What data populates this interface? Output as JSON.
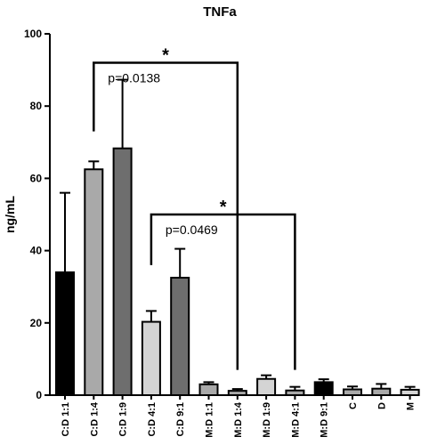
{
  "chart_data": {
    "type": "bar",
    "title": "TNFa",
    "xlabel": "",
    "ylabel": "ng/mL",
    "ylim": [
      0,
      100
    ],
    "yticks": [
      "0",
      "20",
      "40",
      "60",
      "80",
      "100"
    ],
    "categories": [
      "C:D 1:1",
      "C:D 1:4",
      "C:D 1:9",
      "C:D 4:1",
      "C:D 9:1",
      "M:D 1:1",
      "M:D 1:4",
      "M:D 1:9",
      "M:D 4:1",
      "M:D 9:1",
      "C",
      "D",
      "M"
    ],
    "values": [
      34,
      62.5,
      68.3,
      20.3,
      32.5,
      3,
      1.2,
      4.5,
      1.3,
      3.6,
      1.6,
      1.8,
      1.5
    ],
    "errors": [
      22,
      2.2,
      19,
      3,
      8,
      0.6,
      0.5,
      1,
      1,
      0.8,
      0.8,
      1.3,
      0.8
    ],
    "colors": [
      "#000000",
      "#a9a9a9",
      "#6e6e6e",
      "#d4d4d4",
      "#6e6e6e",
      "#a9a9a9",
      "#a9a9a9",
      "#d4d4d4",
      "#a9a9a9",
      "#000000",
      "#a9a9a9",
      "#a9a9a9",
      "#d4d4d4"
    ],
    "grid": false,
    "annotations": [
      {
        "from": "C:D 1:4",
        "to": "M:D 1:4",
        "bracket_y": 92,
        "left_y": 73,
        "right_y": 7,
        "star": "*",
        "label": "p=0.0138"
      },
      {
        "from": "C:D 4:1",
        "to": "M:D 4:1",
        "bracket_y": 50,
        "left_y": 36,
        "right_y": 7,
        "star": "*",
        "label": "p=0.0469"
      }
    ]
  }
}
